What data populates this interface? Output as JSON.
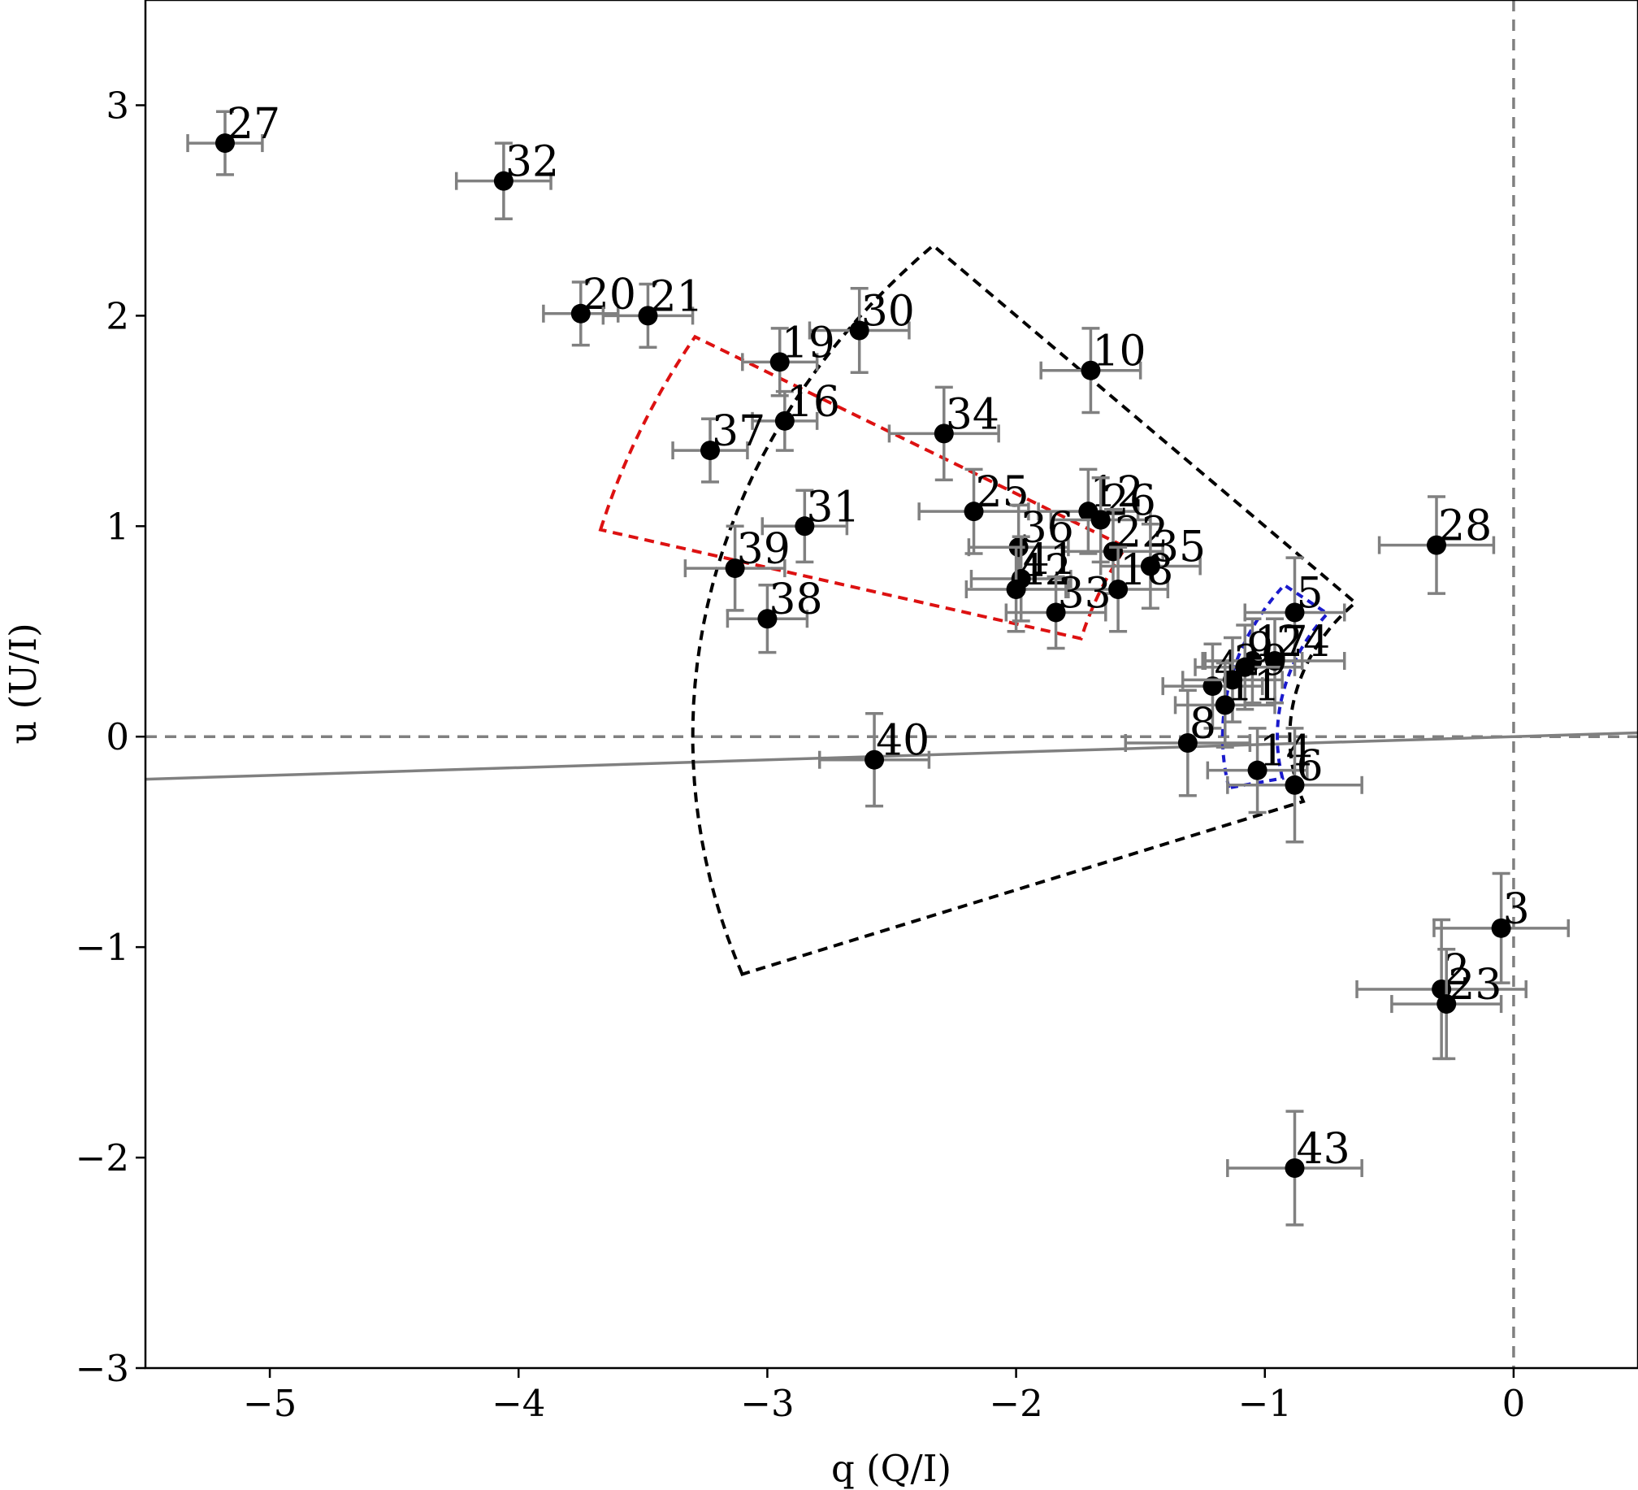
{
  "chart_data": {
    "type": "scatter",
    "xlabel": "q (Q/I)",
    "ylabel": "u (U/I)",
    "xlim": [
      -5.5,
      0.5
    ],
    "ylim": [
      -3,
      3.5
    ],
    "grid": false,
    "x_ticks": [
      -5,
      -4,
      -3,
      -2,
      -1,
      0
    ],
    "y_ticks": [
      -3,
      -2,
      -1,
      0,
      1,
      2,
      3
    ],
    "x_tick_labels": [
      "−5",
      "−4",
      "−3",
      "−2",
      "−1",
      "0"
    ],
    "y_tick_labels": [
      "−3",
      "−2",
      "−1",
      "0",
      "1",
      "2",
      "3"
    ],
    "colors": {
      "points": "#000000",
      "errorbars": "#808080",
      "reference": "#808080",
      "red_region": "#dd1111",
      "black_region": "#000000",
      "blue_region": "#1a1acc"
    },
    "points": [
      {
        "label": "27",
        "q": -5.18,
        "u": 2.82,
        "qerr": 0.15,
        "uerr": 0.15
      },
      {
        "label": "32",
        "q": -4.06,
        "u": 2.64,
        "qerr": 0.19,
        "uerr": 0.18
      },
      {
        "label": "20",
        "q": -3.75,
        "u": 2.01,
        "qerr": 0.15,
        "uerr": 0.15
      },
      {
        "label": "21",
        "q": -3.48,
        "u": 2.0,
        "qerr": 0.18,
        "uerr": 0.15
      },
      {
        "label": "30",
        "q": -2.63,
        "u": 1.93,
        "qerr": 0.2,
        "uerr": 0.2
      },
      {
        "label": "19",
        "q": -2.95,
        "u": 1.78,
        "qerr": 0.15,
        "uerr": 0.16
      },
      {
        "label": "16",
        "q": -2.93,
        "u": 1.5,
        "qerr": 0.13,
        "uerr": 0.14
      },
      {
        "label": "10",
        "q": -1.7,
        "u": 1.74,
        "qerr": 0.2,
        "uerr": 0.2
      },
      {
        "label": "34",
        "q": -2.29,
        "u": 1.44,
        "qerr": 0.22,
        "uerr": 0.22
      },
      {
        "label": "37",
        "q": -3.23,
        "u": 1.36,
        "qerr": 0.15,
        "uerr": 0.15
      },
      {
        "label": "25",
        "q": -2.17,
        "u": 1.07,
        "qerr": 0.22,
        "uerr": 0.2
      },
      {
        "label": "31",
        "q": -2.85,
        "u": 1.0,
        "qerr": 0.17,
        "uerr": 0.17
      },
      {
        "label": "12",
        "q": -1.71,
        "u": 1.07,
        "qerr": 0.2,
        "uerr": 0.2
      },
      {
        "label": "26",
        "q": -1.66,
        "u": 1.03,
        "qerr": 0.2,
        "uerr": 0.2
      },
      {
        "label": "36",
        "q": -1.99,
        "u": 0.9,
        "qerr": 0.2,
        "uerr": 0.2
      },
      {
        "label": "22",
        "q": -1.61,
        "u": 0.88,
        "qerr": 0.2,
        "uerr": 0.2
      },
      {
        "label": "35",
        "q": -1.46,
        "u": 0.81,
        "qerr": 0.2,
        "uerr": 0.2
      },
      {
        "label": "39",
        "q": -3.13,
        "u": 0.8,
        "qerr": 0.2,
        "uerr": 0.2
      },
      {
        "label": "41",
        "q": -1.98,
        "u": 0.75,
        "qerr": 0.2,
        "uerr": 0.2
      },
      {
        "label": "42",
        "q": -2.0,
        "u": 0.7,
        "qerr": 0.2,
        "uerr": 0.2
      },
      {
        "label": "18",
        "q": -1.59,
        "u": 0.7,
        "qerr": 0.2,
        "uerr": 0.2
      },
      {
        "label": "33",
        "q": -1.84,
        "u": 0.59,
        "qerr": 0.2,
        "uerr": 0.17
      },
      {
        "label": "38",
        "q": -3.0,
        "u": 0.56,
        "qerr": 0.16,
        "uerr": 0.16
      },
      {
        "label": "5",
        "q": -0.88,
        "u": 0.59,
        "qerr": 0.2,
        "uerr": 0.26
      },
      {
        "label": "17",
        "q": -1.05,
        "u": 0.36,
        "qerr": 0.2,
        "uerr": 0.2
      },
      {
        "label": "24",
        "q": -0.96,
        "u": 0.36,
        "qerr": 0.28,
        "uerr": 0.2
      },
      {
        "label": "9",
        "q": -1.08,
        "u": 0.33,
        "qerr": 0.2,
        "uerr": 0.2
      },
      {
        "label": "4",
        "q": -1.21,
        "u": 0.24,
        "qerr": 0.2,
        "uerr": 0.2
      },
      {
        "label": "29",
        "q": -1.13,
        "u": 0.27,
        "qerr": 0.2,
        "uerr": 0.2
      },
      {
        "label": "11",
        "q": -1.16,
        "u": 0.15,
        "qerr": 0.2,
        "uerr": 0.2
      },
      {
        "label": "8",
        "q": -1.31,
        "u": -0.03,
        "qerr": 0.25,
        "uerr": 0.25
      },
      {
        "label": "40",
        "q": -2.57,
        "u": -0.11,
        "qerr": 0.22,
        "uerr": 0.22
      },
      {
        "label": "14",
        "q": -1.03,
        "u": -0.16,
        "qerr": 0.2,
        "uerr": 0.2
      },
      {
        "label": "6",
        "q": -0.88,
        "u": -0.23,
        "qerr": 0.27,
        "uerr": 0.27
      },
      {
        "label": "28",
        "q": -0.31,
        "u": 0.91,
        "qerr": 0.23,
        "uerr": 0.23
      },
      {
        "label": "3",
        "q": -0.05,
        "u": -0.91,
        "qerr": 0.27,
        "uerr": 0.26
      },
      {
        "label": "2",
        "q": -0.29,
        "u": -1.2,
        "qerr": 0.34,
        "uerr": 0.33
      },
      {
        "label": "23",
        "q": -0.27,
        "u": -1.27,
        "qerr": 0.22,
        "uerr": 0.26
      },
      {
        "label": "43",
        "q": -0.88,
        "u": -2.05,
        "qerr": 0.27,
        "uerr": 0.27
      }
    ],
    "annotations": {
      "reference_line": {
        "slope": 0.0368
      },
      "black_sector": {
        "r_in": 0.9,
        "r_out": 3.3,
        "theta_min_deg": -20,
        "theta_max_deg": 45
      },
      "red_sector": {
        "r_in": 1.8,
        "r_out": 3.8,
        "theta_min_deg": 15,
        "theta_max_deg": 30
      },
      "blue_sector": {
        "r_in": 0.95,
        "r_out": 1.17,
        "theta_min_deg": -12,
        "theta_max_deg": 38
      }
    }
  }
}
